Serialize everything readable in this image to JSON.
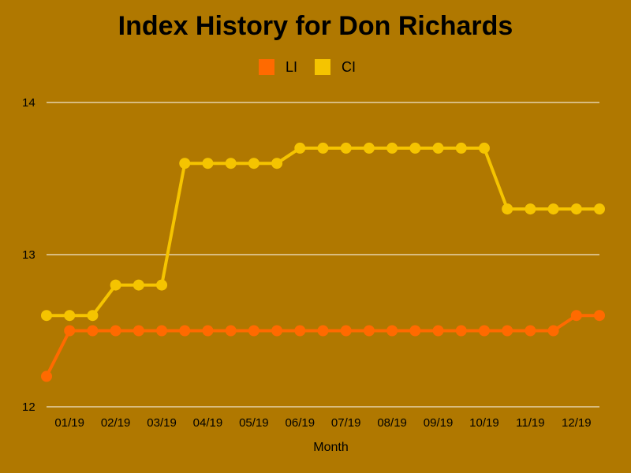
{
  "chart_data": {
    "type": "line",
    "title": "Index History for Don Richards",
    "xlabel": "Month",
    "ylabel": "",
    "ylim": [
      12,
      14
    ],
    "yticks": [
      12,
      13,
      14
    ],
    "grid": true,
    "legend_position": "top-center",
    "x_tick_labels": [
      "01/19",
      "02/19",
      "03/19",
      "04/19",
      "05/19",
      "06/19",
      "07/19",
      "08/19",
      "09/19",
      "10/19",
      "11/19",
      "12/19"
    ],
    "x_tick_points": [
      1,
      3,
      5,
      7,
      9,
      11,
      13,
      15,
      17,
      19,
      21,
      23
    ],
    "background_color": "#b07800",
    "grid_color": "#ffffff",
    "series": [
      {
        "name": "LI",
        "color": "#ff6a00",
        "values": [
          12.2,
          12.5,
          12.5,
          12.5,
          12.5,
          12.5,
          12.5,
          12.5,
          12.5,
          12.5,
          12.5,
          12.5,
          12.5,
          12.5,
          12.5,
          12.5,
          12.5,
          12.5,
          12.5,
          12.5,
          12.5,
          12.5,
          12.5,
          12.6,
          12.6
        ]
      },
      {
        "name": "CI",
        "color": "#f5c400",
        "values": [
          12.6,
          12.6,
          12.6,
          12.8,
          12.8,
          12.8,
          13.6,
          13.6,
          13.6,
          13.6,
          13.6,
          13.7,
          13.7,
          13.7,
          13.7,
          13.7,
          13.7,
          13.7,
          13.7,
          13.7,
          13.3,
          13.3,
          13.3,
          13.3,
          13.3
        ]
      }
    ]
  }
}
